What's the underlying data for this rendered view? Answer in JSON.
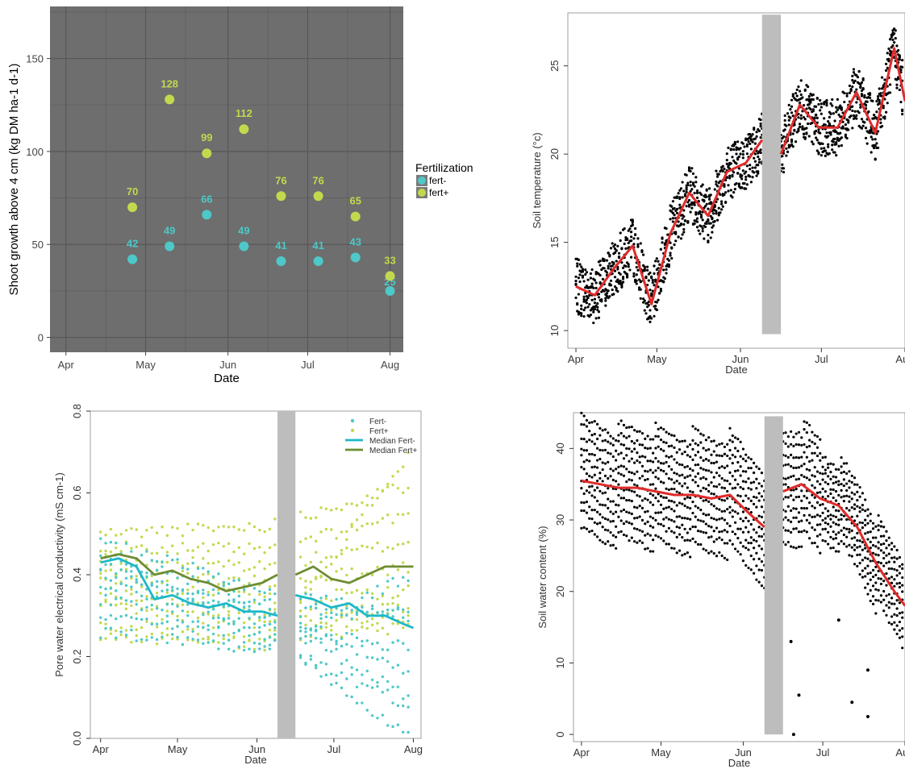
{
  "chart_data": [
    {
      "type": "scatter",
      "xlabel": "Date",
      "ylabel": "Shoot growth above 4 cm (kg DM ha-1 d-1)",
      "x_ticks": [
        "Apr",
        "May",
        "Jun",
        "Jul",
        "Aug"
      ],
      "y_ticks": [
        "0",
        "50",
        "100",
        "150"
      ],
      "ylim": [
        -8,
        178
      ],
      "grid": true,
      "legend": {
        "title": "Fertilization",
        "position": "right",
        "entries": [
          "fert-",
          "fert+"
        ]
      },
      "colors": {
        "fert-": "#4ec8c8",
        "fert+": "#c2d94e",
        "panel": "#6e6e6e"
      },
      "series": [
        {
          "name": "fert-",
          "x": [
            "Apr 26",
            "May 10",
            "May 24",
            "Jun 7",
            "Jun 21",
            "Jul 5",
            "Jul 19",
            "Aug 1"
          ],
          "values": [
            42,
            49,
            66,
            49,
            41,
            41,
            43,
            25
          ],
          "labels": [
            "42",
            "49",
            "66",
            "49",
            "41",
            "41",
            "43",
            "25"
          ]
        },
        {
          "name": "fert+",
          "x": [
            "Apr 26",
            "May 10",
            "May 24",
            "Jun 7",
            "Jun 21",
            "Jul 5",
            "Jul 19",
            "Aug 1"
          ],
          "values": [
            70,
            128,
            99,
            112,
            76,
            76,
            65,
            33
          ],
          "labels": [
            "70",
            "128",
            "99",
            "112",
            "76",
            "76",
            "65",
            "33"
          ]
        }
      ]
    },
    {
      "type": "scatter",
      "xlabel": "Date",
      "ylabel": "Soil temperature (°c)",
      "x_ticks": [
        "Apr",
        "May",
        "Jun",
        "Jul",
        "Aug"
      ],
      "y_ticks": [
        "10",
        "15",
        "20",
        "25"
      ],
      "ylim": [
        9,
        28
      ],
      "gap": [
        "Jun 9",
        "Jun 16"
      ],
      "colors": {
        "points": "#000000",
        "median": "#e02a2a",
        "gap": "#bdbdbd"
      },
      "median": {
        "x": [
          "Apr 1",
          "Apr 8",
          "Apr 15",
          "Apr 22",
          "Apr 29",
          "May 6",
          "May 13",
          "May 20",
          "May 27",
          "Jun 3",
          "Jun 9",
          "Jun 16",
          "Jun 23",
          "Jun 30",
          "Jul 7",
          "Jul 14",
          "Jul 21",
          "Jul 28",
          "Aug 1"
        ],
        "values": [
          12.5,
          12.0,
          13.5,
          14.8,
          11.5,
          15.5,
          17.8,
          16.5,
          19.0,
          19.5,
          20.8,
          20.0,
          22.8,
          21.5,
          21.5,
          23.5,
          21.2,
          26.0,
          23.0
        ]
      }
    },
    {
      "type": "scatter",
      "xlabel": "Date",
      "ylabel": "Pore water electrical conductivity  (mS cm-1)",
      "x_ticks": [
        "Apr",
        "May",
        "Jun",
        "Jul",
        "Aug"
      ],
      "y_ticks": [
        "0.0",
        "0.2",
        "0.4",
        "0.6",
        "0.8"
      ],
      "ylim": [
        0,
        0.8
      ],
      "gap": [
        "Jun 9",
        "Jun 16"
      ],
      "legend": {
        "position": "top-right",
        "entries": [
          "Fert-",
          "Fert+",
          "Median Fert-",
          "Median Fert+"
        ]
      },
      "colors": {
        "Fert-": "#4ec8c8",
        "Fert+": "#c2d94e",
        "Median Fert-": "#1eb8c8",
        "Median Fert+": "#6e8c32",
        "gap": "#bdbdbd"
      },
      "series": [
        {
          "name": "Median Fert-",
          "x": [
            "Apr 1",
            "Apr 8",
            "Apr 15",
            "Apr 22",
            "Apr 29",
            "May 6",
            "May 13",
            "May 20",
            "May 27",
            "Jun 3",
            "Jun 9",
            "Jun 16",
            "Jun 23",
            "Jun 30",
            "Jul 7",
            "Jul 14",
            "Jul 21",
            "Jul 28",
            "Aug 1"
          ],
          "values": [
            0.43,
            0.44,
            0.42,
            0.34,
            0.35,
            0.33,
            0.32,
            0.33,
            0.31,
            0.31,
            0.3,
            0.35,
            0.34,
            0.32,
            0.33,
            0.3,
            0.3,
            0.28,
            0.27
          ]
        },
        {
          "name": "Median Fert+",
          "x": [
            "Apr 1",
            "Apr 8",
            "Apr 15",
            "Apr 22",
            "Apr 29",
            "May 6",
            "May 13",
            "May 20",
            "May 27",
            "Jun 3",
            "Jun 9",
            "Jun 16",
            "Jun 23",
            "Jun 30",
            "Jul 7",
            "Jul 14",
            "Jul 21",
            "Jul 28",
            "Aug 1"
          ],
          "values": [
            0.44,
            0.45,
            0.44,
            0.4,
            0.41,
            0.39,
            0.38,
            0.36,
            0.37,
            0.38,
            0.4,
            0.4,
            0.42,
            0.39,
            0.38,
            0.4,
            0.42,
            0.42,
            0.42
          ]
        }
      ]
    },
    {
      "type": "scatter",
      "xlabel": "Date",
      "ylabel": "Soil water content (%)",
      "x_ticks": [
        "Apr",
        "May",
        "Jun",
        "Jul",
        "Aug"
      ],
      "y_ticks": [
        "0",
        "10",
        "20",
        "30",
        "40"
      ],
      "ylim": [
        -1,
        45
      ],
      "gap": [
        "Jun 9",
        "Jun 16"
      ],
      "colors": {
        "points": "#000000",
        "median": "#e02a2a",
        "gap": "#bdbdbd"
      },
      "median": {
        "x": [
          "Apr 1",
          "Apr 8",
          "Apr 15",
          "Apr 22",
          "Apr 29",
          "May 6",
          "May 13",
          "May 20",
          "May 27",
          "Jun 3",
          "Jun 9",
          "Jun 16",
          "Jun 23",
          "Jun 30",
          "Jul 7",
          "Jul 14",
          "Jul 21",
          "Jul 28",
          "Aug 1"
        ],
        "values": [
          35.5,
          35.0,
          34.5,
          34.5,
          34.0,
          33.5,
          33.5,
          33.0,
          33.5,
          31.0,
          29.0,
          34.0,
          35.0,
          33.0,
          32.0,
          29.0,
          24.0,
          20.0,
          18.0
        ]
      }
    }
  ]
}
